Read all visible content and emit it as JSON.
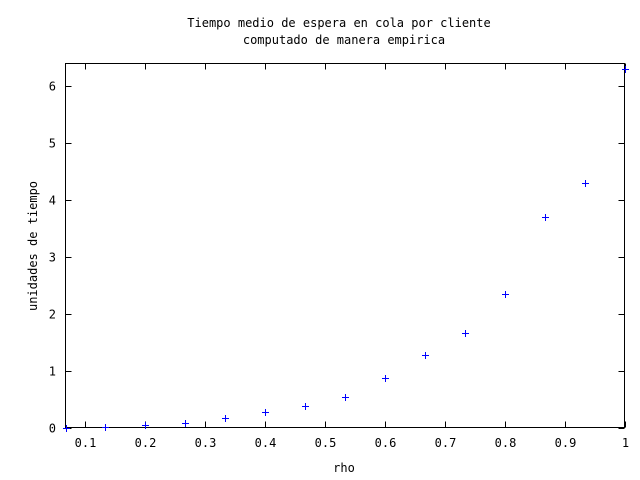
{
  "chart_data": {
    "type": "scatter",
    "title": "Tiempo medio de espera en cola por cliente",
    "subtitle": "computado de manera empirica",
    "xlabel": "rho",
    "ylabel": "unidades de tiempo",
    "xlim": [
      0.0667,
      1.0
    ],
    "ylim": [
      0,
      6.4
    ],
    "x_ticks": [
      "0.1",
      "0.2",
      "0.3",
      "0.4",
      "0.5",
      "0.6",
      "0.7",
      "0.8",
      "0.9",
      "1"
    ],
    "y_ticks": [
      "0",
      "1",
      "2",
      "3",
      "4",
      "5",
      "6"
    ],
    "grid": false,
    "marker": "+",
    "color": "#0000ff",
    "series": [
      {
        "x": [
          0.0667,
          0.1333,
          0.2,
          0.2667,
          0.3333,
          0.4,
          0.4667,
          0.5333,
          0.6,
          0.6667,
          0.7333,
          0.8,
          0.8667,
          0.9333,
          1.0
        ],
        "y": [
          0.0,
          0.01,
          0.05,
          0.08,
          0.17,
          0.27,
          0.38,
          0.54,
          0.87,
          1.27,
          1.66,
          2.34,
          3.7,
          4.3,
          6.3
        ]
      }
    ]
  }
}
